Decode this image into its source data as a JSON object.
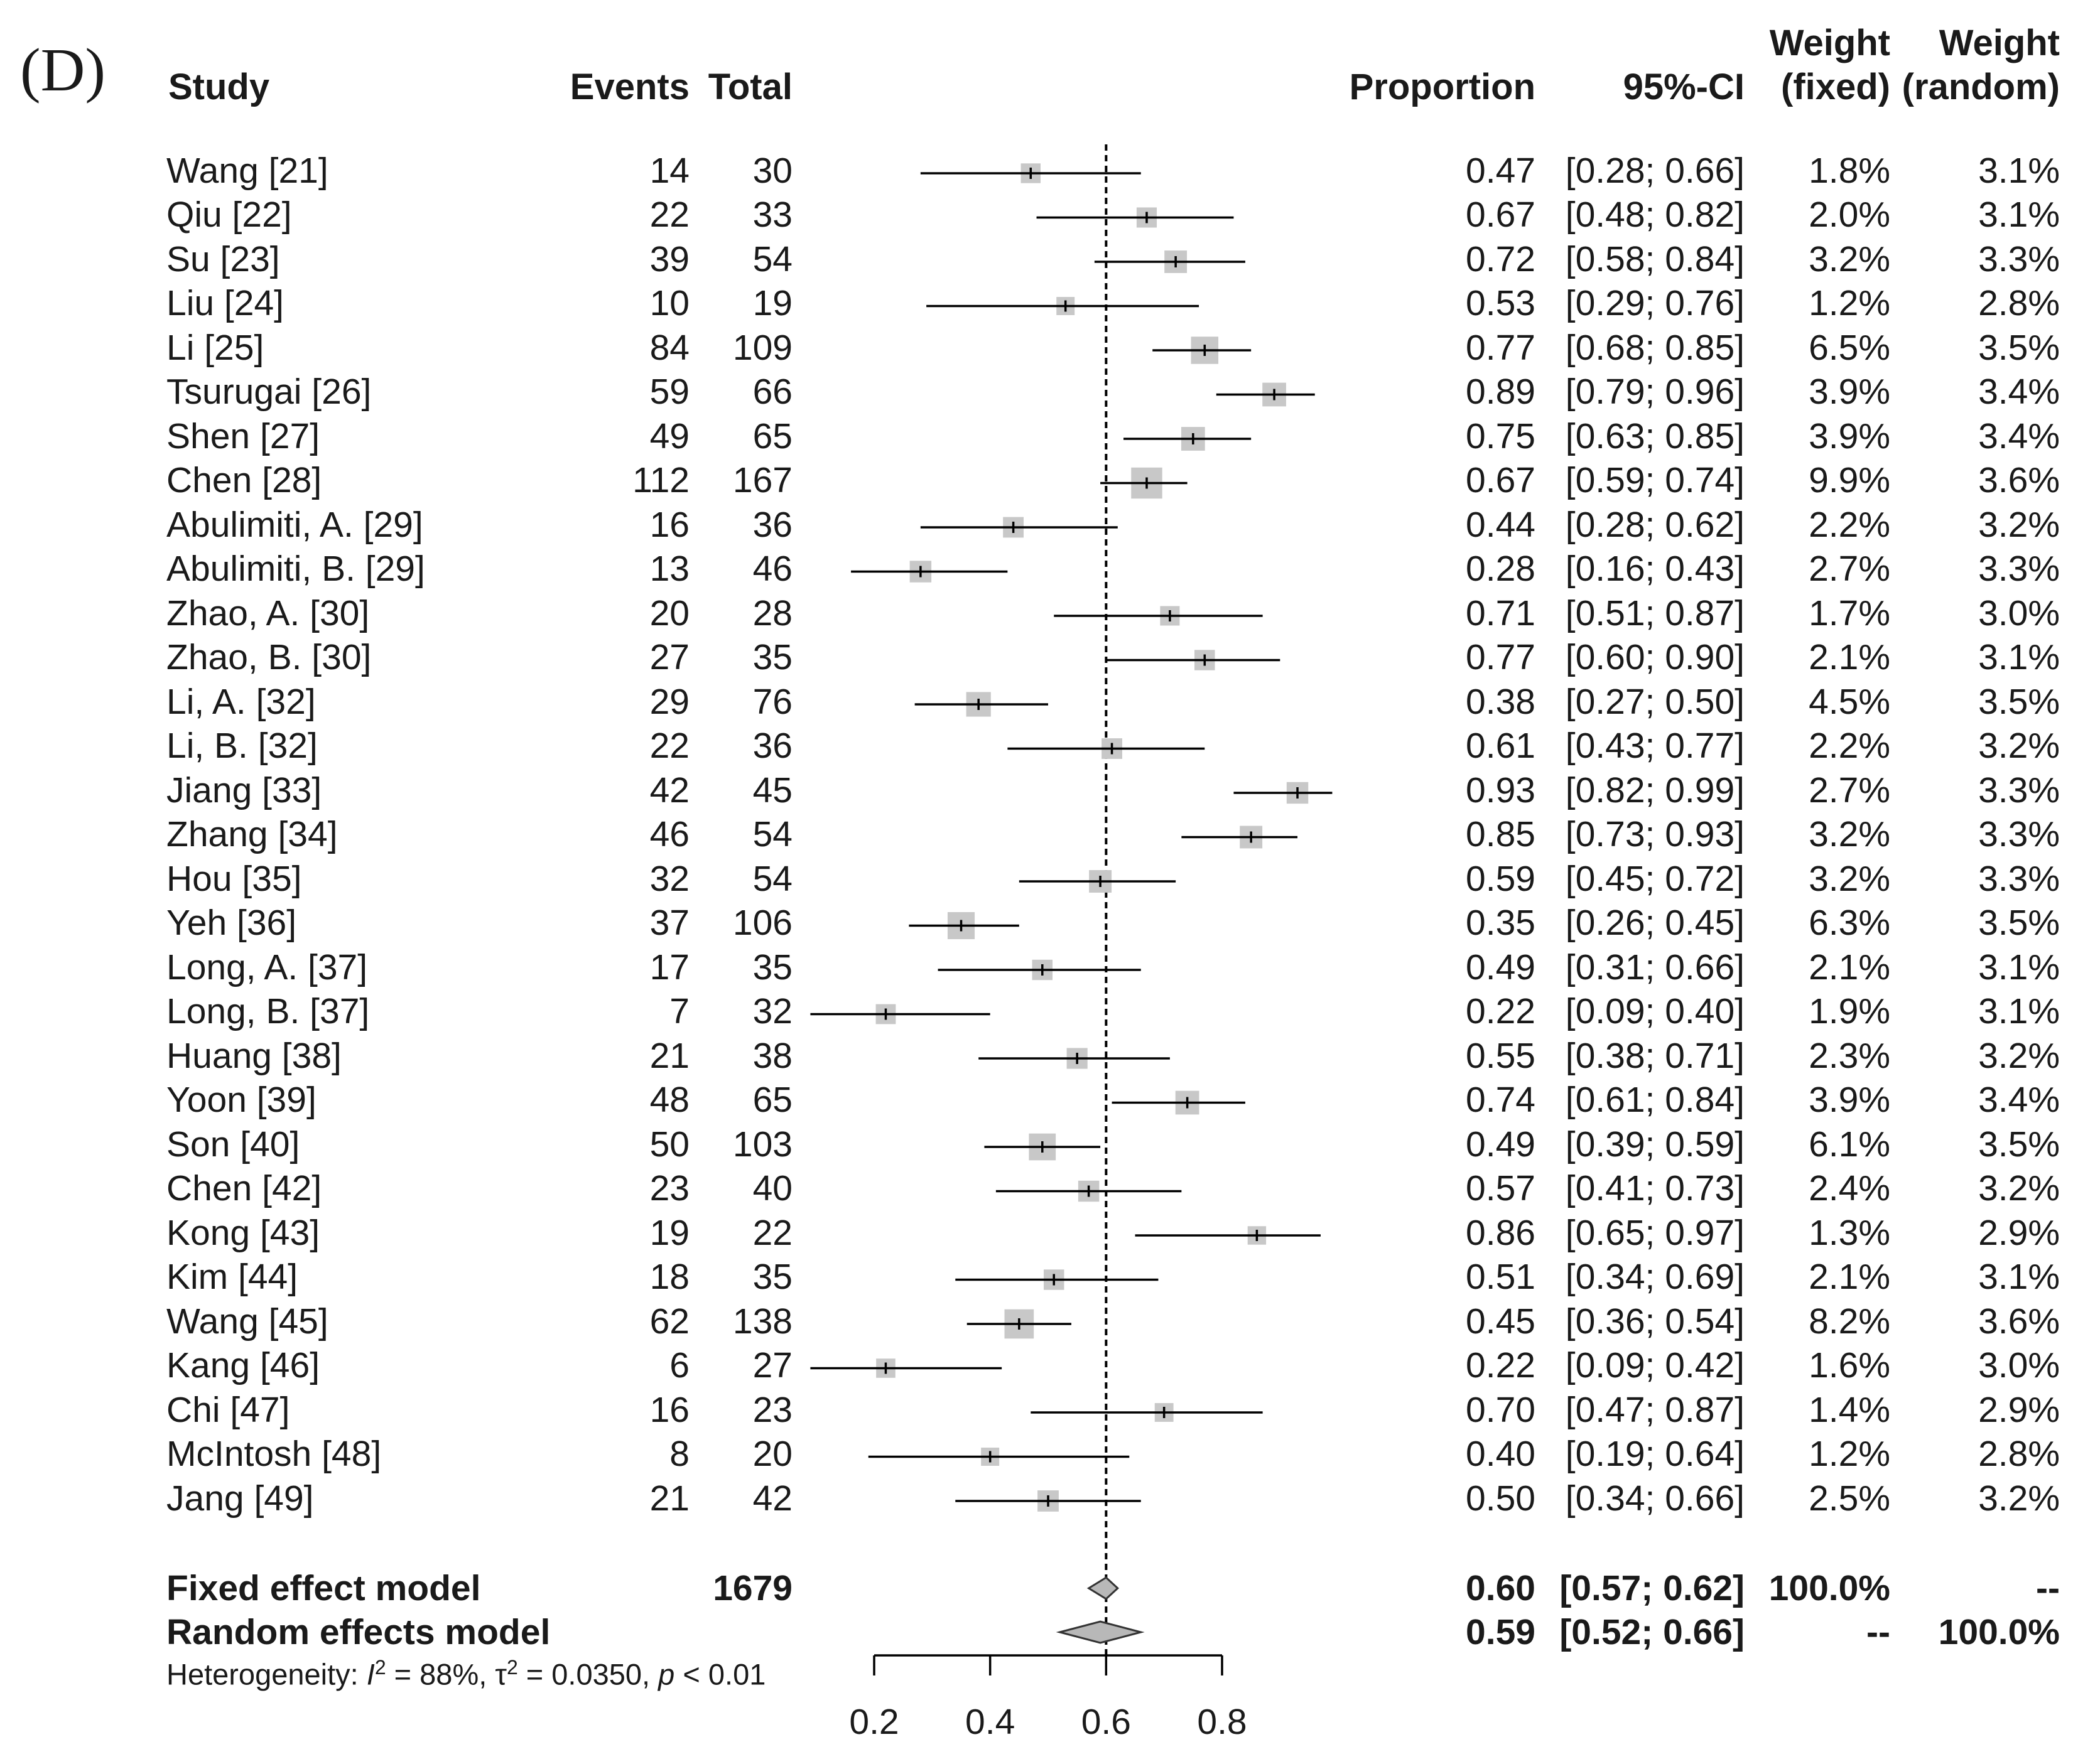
{
  "panel_label": "(D)",
  "headers": {
    "study": "Study",
    "events": "Events",
    "total": "Total",
    "proportion": "Proportion",
    "ci": "95%-CI",
    "weight_fixed_1": "Weight",
    "weight_fixed_2": "(fixed)",
    "weight_random_1": "Weight",
    "weight_random_2": "(random)"
  },
  "rows": [
    {
      "study": "Wang [21]",
      "events": "14",
      "total": "30",
      "proportion": "0.47",
      "ci": "[0.28; 0.66]",
      "w_fixed": "1.8%",
      "w_random": "3.1%"
    },
    {
      "study": "Qiu [22]",
      "events": "22",
      "total": "33",
      "proportion": "0.67",
      "ci": "[0.48; 0.82]",
      "w_fixed": "2.0%",
      "w_random": "3.1%"
    },
    {
      "study": "Su [23]",
      "events": "39",
      "total": "54",
      "proportion": "0.72",
      "ci": "[0.58; 0.84]",
      "w_fixed": "3.2%",
      "w_random": "3.3%"
    },
    {
      "study": "Liu [24]",
      "events": "10",
      "total": "19",
      "proportion": "0.53",
      "ci": "[0.29; 0.76]",
      "w_fixed": "1.2%",
      "w_random": "2.8%"
    },
    {
      "study": "Li [25]",
      "events": "84",
      "total": "109",
      "proportion": "0.77",
      "ci": "[0.68; 0.85]",
      "w_fixed": "6.5%",
      "w_random": "3.5%"
    },
    {
      "study": "Tsurugai [26]",
      "events": "59",
      "total": "66",
      "proportion": "0.89",
      "ci": "[0.79; 0.96]",
      "w_fixed": "3.9%",
      "w_random": "3.4%"
    },
    {
      "study": "Shen [27]",
      "events": "49",
      "total": "65",
      "proportion": "0.75",
      "ci": "[0.63; 0.85]",
      "w_fixed": "3.9%",
      "w_random": "3.4%"
    },
    {
      "study": "Chen [28]",
      "events": "112",
      "total": "167",
      "proportion": "0.67",
      "ci": "[0.59; 0.74]",
      "w_fixed": "9.9%",
      "w_random": "3.6%"
    },
    {
      "study": "Abulimiti, A. [29]",
      "events": "16",
      "total": "36",
      "proportion": "0.44",
      "ci": "[0.28; 0.62]",
      "w_fixed": "2.2%",
      "w_random": "3.2%"
    },
    {
      "study": "Abulimiti, B. [29]",
      "events": "13",
      "total": "46",
      "proportion": "0.28",
      "ci": "[0.16; 0.43]",
      "w_fixed": "2.7%",
      "w_random": "3.3%"
    },
    {
      "study": "Zhao, A. [30]",
      "events": "20",
      "total": "28",
      "proportion": "0.71",
      "ci": "[0.51; 0.87]",
      "w_fixed": "1.7%",
      "w_random": "3.0%"
    },
    {
      "study": "Zhao, B. [30]",
      "events": "27",
      "total": "35",
      "proportion": "0.77",
      "ci": "[0.60; 0.90]",
      "w_fixed": "2.1%",
      "w_random": "3.1%"
    },
    {
      "study": "Li, A. [32]",
      "events": "29",
      "total": "76",
      "proportion": "0.38",
      "ci": "[0.27; 0.50]",
      "w_fixed": "4.5%",
      "w_random": "3.5%"
    },
    {
      "study": "Li, B. [32]",
      "events": "22",
      "total": "36",
      "proportion": "0.61",
      "ci": "[0.43; 0.77]",
      "w_fixed": "2.2%",
      "w_random": "3.2%"
    },
    {
      "study": "Jiang [33]",
      "events": "42",
      "total": "45",
      "proportion": "0.93",
      "ci": "[0.82; 0.99]",
      "w_fixed": "2.7%",
      "w_random": "3.3%"
    },
    {
      "study": "Zhang [34]",
      "events": "46",
      "total": "54",
      "proportion": "0.85",
      "ci": "[0.73; 0.93]",
      "w_fixed": "3.2%",
      "w_random": "3.3%"
    },
    {
      "study": "Hou [35]",
      "events": "32",
      "total": "54",
      "proportion": "0.59",
      "ci": "[0.45; 0.72]",
      "w_fixed": "3.2%",
      "w_random": "3.3%"
    },
    {
      "study": "Yeh [36]",
      "events": "37",
      "total": "106",
      "proportion": "0.35",
      "ci": "[0.26; 0.45]",
      "w_fixed": "6.3%",
      "w_random": "3.5%"
    },
    {
      "study": "Long, A. [37]",
      "events": "17",
      "total": "35",
      "proportion": "0.49",
      "ci": "[0.31; 0.66]",
      "w_fixed": "2.1%",
      "w_random": "3.1%"
    },
    {
      "study": "Long, B. [37]",
      "events": "7",
      "total": "32",
      "proportion": "0.22",
      "ci": "[0.09; 0.40]",
      "w_fixed": "1.9%",
      "w_random": "3.1%"
    },
    {
      "study": "Huang [38]",
      "events": "21",
      "total": "38",
      "proportion": "0.55",
      "ci": "[0.38; 0.71]",
      "w_fixed": "2.3%",
      "w_random": "3.2%"
    },
    {
      "study": "Yoon [39]",
      "events": "48",
      "total": "65",
      "proportion": "0.74",
      "ci": "[0.61; 0.84]",
      "w_fixed": "3.9%",
      "w_random": "3.4%"
    },
    {
      "study": "Son [40]",
      "events": "50",
      "total": "103",
      "proportion": "0.49",
      "ci": "[0.39; 0.59]",
      "w_fixed": "6.1%",
      "w_random": "3.5%"
    },
    {
      "study": "Chen [42]",
      "events": "23",
      "total": "40",
      "proportion": "0.57",
      "ci": "[0.41; 0.73]",
      "w_fixed": "2.4%",
      "w_random": "3.2%"
    },
    {
      "study": "Kong [43]",
      "events": "19",
      "total": "22",
      "proportion": "0.86",
      "ci": "[0.65; 0.97]",
      "w_fixed": "1.3%",
      "w_random": "2.9%"
    },
    {
      "study": "Kim [44]",
      "events": "18",
      "total": "35",
      "proportion": "0.51",
      "ci": "[0.34; 0.69]",
      "w_fixed": "2.1%",
      "w_random": "3.1%"
    },
    {
      "study": "Wang [45]",
      "events": "62",
      "total": "138",
      "proportion": "0.45",
      "ci": "[0.36; 0.54]",
      "w_fixed": "8.2%",
      "w_random": "3.6%"
    },
    {
      "study": "Kang [46]",
      "events": "6",
      "total": "27",
      "proportion": "0.22",
      "ci": "[0.09; 0.42]",
      "w_fixed": "1.6%",
      "w_random": "3.0%"
    },
    {
      "study": "Chi [47]",
      "events": "16",
      "total": "23",
      "proportion": "0.70",
      "ci": "[0.47; 0.87]",
      "w_fixed": "1.4%",
      "w_random": "2.9%"
    },
    {
      "study": "McIntosh [48]",
      "events": "8",
      "total": "20",
      "proportion": "0.40",
      "ci": "[0.19; 0.64]",
      "w_fixed": "1.2%",
      "w_random": "2.8%"
    },
    {
      "study": "Jang [49]",
      "events": "21",
      "total": "42",
      "proportion": "0.50",
      "ci": "[0.34; 0.66]",
      "w_fixed": "2.5%",
      "w_random": "3.2%"
    }
  ],
  "fixed_model": {
    "label": "Fixed effect model",
    "total": "1679",
    "proportion": "0.60",
    "ci": "[0.57; 0.62]",
    "w_fixed": "100.0%",
    "w_random": "--"
  },
  "random_model": {
    "label": "Random effects model",
    "proportion": "0.59",
    "ci": "[0.52; 0.66]",
    "w_fixed": "--",
    "w_random": "100.0%"
  },
  "heterogeneity": {
    "prefix": "Heterogeneity: ",
    "i_symbol": "I",
    "i_exp": "2",
    "i_value": " = 88%, ",
    "tau_symbol": "τ",
    "tau_exp": "2",
    "tau_value": " = 0.0350, ",
    "p_symbol": "p",
    "p_value": " < 0.01"
  },
  "chart_data": {
    "type": "forest",
    "xlim": [
      0.2,
      0.8
    ],
    "xticks": [
      "0.2",
      "0.4",
      "0.6",
      "0.8"
    ],
    "reference_line": 0.6,
    "fixed_estimate": {
      "est": 0.6,
      "lo": 0.57,
      "hi": 0.62
    },
    "random_estimate": {
      "est": 0.59,
      "lo": 0.52,
      "hi": 0.66
    },
    "points": [
      {
        "est": 0.47,
        "lo": 0.28,
        "hi": 0.66,
        "w": 1.8
      },
      {
        "est": 0.67,
        "lo": 0.48,
        "hi": 0.82,
        "w": 2.0
      },
      {
        "est": 0.72,
        "lo": 0.58,
        "hi": 0.84,
        "w": 3.2
      },
      {
        "est": 0.53,
        "lo": 0.29,
        "hi": 0.76,
        "w": 1.2
      },
      {
        "est": 0.77,
        "lo": 0.68,
        "hi": 0.85,
        "w": 6.5
      },
      {
        "est": 0.89,
        "lo": 0.79,
        "hi": 0.96,
        "w": 3.9
      },
      {
        "est": 0.75,
        "lo": 0.63,
        "hi": 0.85,
        "w": 3.9
      },
      {
        "est": 0.67,
        "lo": 0.59,
        "hi": 0.74,
        "w": 9.9
      },
      {
        "est": 0.44,
        "lo": 0.28,
        "hi": 0.62,
        "w": 2.2
      },
      {
        "est": 0.28,
        "lo": 0.16,
        "hi": 0.43,
        "w": 2.7
      },
      {
        "est": 0.71,
        "lo": 0.51,
        "hi": 0.87,
        "w": 1.7
      },
      {
        "est": 0.77,
        "lo": 0.6,
        "hi": 0.9,
        "w": 2.1
      },
      {
        "est": 0.38,
        "lo": 0.27,
        "hi": 0.5,
        "w": 4.5
      },
      {
        "est": 0.61,
        "lo": 0.43,
        "hi": 0.77,
        "w": 2.2
      },
      {
        "est": 0.93,
        "lo": 0.82,
        "hi": 0.99,
        "w": 2.7
      },
      {
        "est": 0.85,
        "lo": 0.73,
        "hi": 0.93,
        "w": 3.2
      },
      {
        "est": 0.59,
        "lo": 0.45,
        "hi": 0.72,
        "w": 3.2
      },
      {
        "est": 0.35,
        "lo": 0.26,
        "hi": 0.45,
        "w": 6.3
      },
      {
        "est": 0.49,
        "lo": 0.31,
        "hi": 0.66,
        "w": 2.1
      },
      {
        "est": 0.22,
        "lo": 0.09,
        "hi": 0.4,
        "w": 1.9
      },
      {
        "est": 0.55,
        "lo": 0.38,
        "hi": 0.71,
        "w": 2.3
      },
      {
        "est": 0.74,
        "lo": 0.61,
        "hi": 0.84,
        "w": 3.9
      },
      {
        "est": 0.49,
        "lo": 0.39,
        "hi": 0.59,
        "w": 6.1
      },
      {
        "est": 0.57,
        "lo": 0.41,
        "hi": 0.73,
        "w": 2.4
      },
      {
        "est": 0.86,
        "lo": 0.65,
        "hi": 0.97,
        "w": 1.3
      },
      {
        "est": 0.51,
        "lo": 0.34,
        "hi": 0.69,
        "w": 2.1
      },
      {
        "est": 0.45,
        "lo": 0.36,
        "hi": 0.54,
        "w": 8.2
      },
      {
        "est": 0.22,
        "lo": 0.09,
        "hi": 0.42,
        "w": 1.6
      },
      {
        "est": 0.7,
        "lo": 0.47,
        "hi": 0.87,
        "w": 1.4
      },
      {
        "est": 0.4,
        "lo": 0.19,
        "hi": 0.64,
        "w": 1.2
      },
      {
        "est": 0.5,
        "lo": 0.34,
        "hi": 0.66,
        "w": 2.5
      }
    ],
    "colors": {
      "box": "#c8c8c8",
      "line": "#000000",
      "diamond": "#b8b8b8"
    }
  }
}
